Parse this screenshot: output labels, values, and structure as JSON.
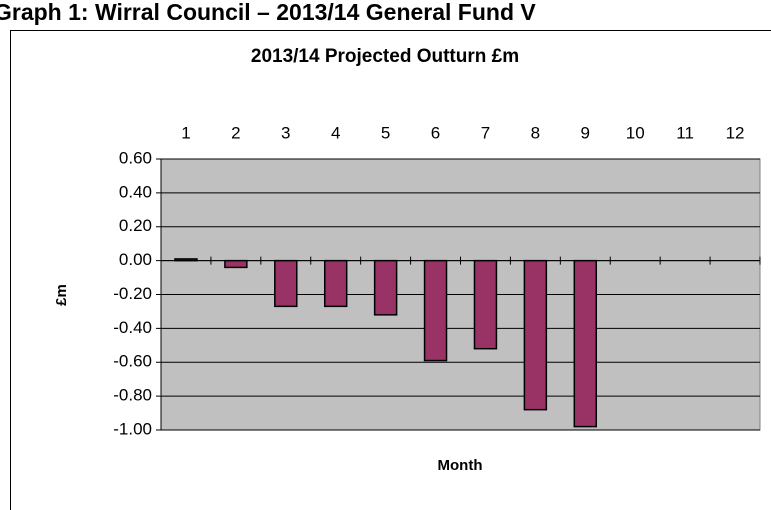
{
  "heading": "Graph 1: Wirral Council – 2013/14 General Fund V",
  "chart_data": {
    "type": "bar",
    "title": "2013/14 Projected Outturn £m",
    "x_label": "Month",
    "y_label": "£m",
    "categories": [
      "1",
      "2",
      "3",
      "4",
      "5",
      "6",
      "7",
      "8",
      "9",
      "10",
      "11",
      "12"
    ],
    "values": [
      0.01,
      -0.04,
      -0.27,
      -0.27,
      -0.32,
      -0.59,
      -0.52,
      -0.88,
      -0.98,
      null,
      null,
      null
    ],
    "color": "#993366",
    "ylim": [
      -1.0,
      0.6
    ],
    "yticks": [
      {
        "value": 0.6,
        "label": "0.60"
      },
      {
        "value": 0.4,
        "label": "0.40"
      },
      {
        "value": 0.2,
        "label": "0.20"
      },
      {
        "value": 0,
        "label": "0.00"
      },
      {
        "value": -0.2,
        "label": "-0.20"
      },
      {
        "value": -0.4,
        "label": "-0.40"
      },
      {
        "value": -0.6,
        "label": "-0.60"
      },
      {
        "value": -0.8,
        "label": "-0.80"
      },
      {
        "value": -1.0,
        "label": "-1.00"
      }
    ],
    "grid": true
  }
}
